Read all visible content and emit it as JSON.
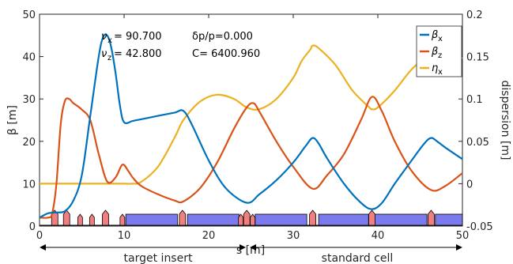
{
  "chart_data": {
    "type": "line",
    "xlabel": "s [m]",
    "ylabel_left": "β [m]",
    "ylabel_right": "dispersion [m]",
    "xlim": [
      0,
      50
    ],
    "ylim_left": [
      0,
      50
    ],
    "ylim_right": [
      -0.05,
      0.2
    ],
    "xticks": [
      "0",
      "10",
      "20",
      "30",
      "40",
      "50"
    ],
    "yticks_left": [
      "0",
      "10",
      "20",
      "30",
      "40",
      "50"
    ],
    "yticks_right": [
      "-0.05",
      "0",
      "0.05",
      "0.1",
      "0.15",
      "0.2"
    ],
    "annotations": {
      "nux": "ν",
      "nux_sub": "x",
      "nux_val": "= 90.700",
      "nuz": "ν",
      "nuz_sub": "z",
      "nuz_val": "= 42.800",
      "dpp": "δp/p=0.000",
      "circ": "C= 6400.960"
    },
    "legend": {
      "placement": "top-right",
      "entries": [
        {
          "sym": "β",
          "sub": "x",
          "color": "#0072BD"
        },
        {
          "sym": "β",
          "sub": "z",
          "color": "#D95319"
        },
        {
          "sym": "η",
          "sub": "x",
          "color": "#EDB120"
        }
      ]
    },
    "regions": [
      {
        "label": "target insert",
        "from": 0,
        "to": 24.5
      },
      {
        "label": "standard cell",
        "from": 25,
        "to": 50
      }
    ],
    "series": [
      {
        "key": "betax",
        "color": "#0072BD",
        "axis": "left",
        "x": [
          0,
          1,
          2,
          3,
          4,
          5,
          6,
          7,
          7.5,
          8,
          8.5,
          9,
          9.5,
          10,
          11,
          12,
          14,
          16,
          17,
          18,
          20,
          22,
          24.5,
          26,
          28,
          30,
          31.5,
          32.3,
          33,
          34,
          36,
          38,
          39.3,
          40.5,
          42,
          44,
          45.5,
          46.3,
          47,
          48,
          50
        ],
        "y": [
          2.0,
          3.0,
          3.2,
          3.5,
          6.0,
          12.0,
          26.0,
          40.0,
          44.5,
          45.0,
          42.0,
          36.0,
          28.5,
          24.5,
          24.8,
          25.2,
          26.0,
          26.8,
          27.2,
          24.0,
          15.5,
          9.0,
          5.5,
          7.5,
          10.8,
          15.0,
          19.0,
          20.8,
          19.5,
          16.0,
          10.0,
          5.5,
          4.0,
          5.5,
          10.0,
          15.5,
          19.5,
          20.8,
          20.0,
          18.5,
          15.8
        ]
      },
      {
        "key": "betaz",
        "color": "#D95319",
        "axis": "left",
        "x": [
          0,
          1,
          1.5,
          2,
          2.5,
          3,
          3.5,
          4,
          5,
          6,
          7,
          8,
          9,
          9.8,
          10.5,
          11,
          12,
          14,
          16,
          17,
          19,
          21,
          23,
          24.5,
          25.3,
          26,
          28,
          30,
          32.3,
          34,
          36,
          38,
          39.3,
          40.5,
          42,
          44,
          46.3,
          48,
          50
        ],
        "y": [
          2.0,
          2.0,
          3.0,
          10.0,
          24.0,
          29.5,
          30.0,
          29.0,
          27.5,
          25.0,
          17.0,
          10.5,
          11.5,
          14.5,
          13.0,
          11.5,
          9.5,
          7.5,
          6.0,
          5.8,
          9.0,
          15.0,
          23.0,
          28.0,
          29.0,
          27.0,
          20.0,
          14.0,
          8.8,
          12.0,
          17.0,
          25.0,
          30.5,
          27.0,
          20.0,
          13.0,
          8.5,
          9.5,
          12.5
        ]
      },
      {
        "key": "etax",
        "color": "#EDB120",
        "axis": "right",
        "x": [
          0,
          5,
          8,
          10,
          11,
          12,
          14,
          16,
          17,
          19,
          21,
          23,
          24.5,
          26,
          28,
          30,
          31,
          32,
          32.3,
          33,
          35,
          37,
          39,
          39.3,
          40,
          42,
          44,
          46,
          47,
          48,
          50
        ],
        "y": [
          0.0,
          0.0,
          0.0,
          0.0,
          0.0,
          0.002,
          0.02,
          0.055,
          0.075,
          0.097,
          0.105,
          0.1,
          0.09,
          0.088,
          0.1,
          0.125,
          0.145,
          0.158,
          0.163,
          0.16,
          0.14,
          0.11,
          0.09,
          0.088,
          0.09,
          0.11,
          0.135,
          0.152,
          0.16,
          0.157,
          0.148
        ]
      }
    ],
    "elements": {
      "magnets": [
        {
          "from": 10.2,
          "to": 16.3
        },
        {
          "from": 17.5,
          "to": 23.6
        },
        {
          "from": 25.5,
          "to": 31.6
        },
        {
          "from": 33,
          "to": 38.9
        },
        {
          "from": 39.6,
          "to": 45.8
        },
        {
          "from": 46.8,
          "to": 50
        }
      ],
      "quads": [
        1.8,
        3.2,
        7.8,
        16.9,
        24.5,
        32.3,
        39.3,
        46.3
      ],
      "small_quads": [
        4.8,
        6.2,
        9.8,
        23.8,
        25.2
      ]
    }
  }
}
